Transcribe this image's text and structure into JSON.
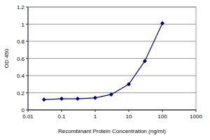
{
  "chart_data": {
    "type": "line",
    "x_label": "Recombinant Protein Concentration (ng/ml)",
    "y_label": "OD 450",
    "x": [
      0.03,
      0.1,
      0.3,
      1,
      3,
      10,
      30,
      100
    ],
    "values": [
      0.12,
      0.13,
      0.13,
      0.14,
      0.18,
      0.3,
      0.57,
      1.01
    ],
    "color": "#000080",
    "marker": "diamond",
    "log": "x",
    "xlim": [
      0.01,
      1000
    ],
    "xticks": [
      0.01,
      0.1,
      1,
      10,
      100,
      1000
    ],
    "ylim": [
      0,
      1.2
    ],
    "yticks": [
      0,
      0.2,
      0.4,
      0.6,
      0.8,
      1,
      1.2
    ],
    "grid": true
  }
}
